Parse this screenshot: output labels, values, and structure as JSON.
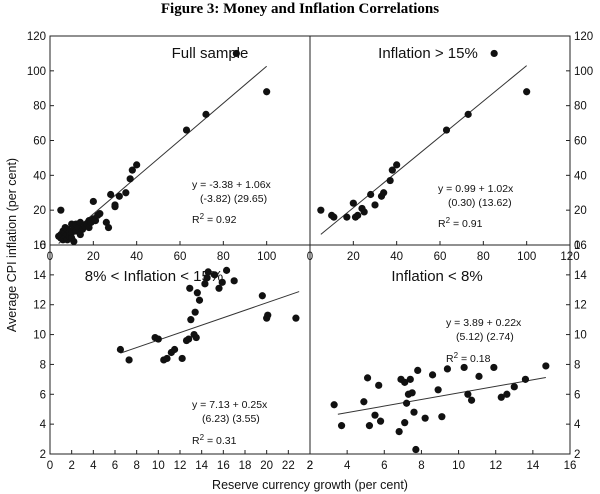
{
  "figure_title": "Figure 3: Money and Inflation Correlations",
  "axis_labels": {
    "y": "Average CPI inflation (per cent)",
    "x": "Reserve currency growth (per cent)"
  },
  "chart_data": [
    {
      "type": "scatter",
      "title": "Full sample",
      "xlim": [
        0,
        120
      ],
      "ylim": [
        0,
        120
      ],
      "x_ticks": [
        "0",
        "20",
        "40",
        "60",
        "80",
        "100"
      ],
      "y_ticks": [
        "0",
        "20",
        "40",
        "60",
        "80",
        "100",
        "120"
      ],
      "equation": [
        "y = -3.38 + 1.06x",
        "(-3.82)  (29.65)"
      ],
      "r2_label": "R",
      "r2_value": "2 = 0.92",
      "fit": {
        "intercept": -3.38,
        "slope": 1.06,
        "x_range": [
          4,
          100
        ]
      },
      "points": [
        [
          5,
          20
        ],
        [
          4,
          5
        ],
        [
          5,
          4
        ],
        [
          5,
          6
        ],
        [
          6,
          8
        ],
        [
          6,
          3
        ],
        [
          7,
          5
        ],
        [
          7,
          7
        ],
        [
          7,
          10
        ],
        [
          8,
          3
        ],
        [
          8,
          6
        ],
        [
          8,
          9
        ],
        [
          9,
          5
        ],
        [
          9,
          8
        ],
        [
          10,
          7
        ],
        [
          10,
          4
        ],
        [
          10,
          12
        ],
        [
          11,
          2
        ],
        [
          11,
          10
        ],
        [
          12,
          8
        ],
        [
          12,
          12
        ],
        [
          13,
          10
        ],
        [
          14,
          6
        ],
        [
          14,
          13
        ],
        [
          15,
          9
        ],
        [
          16,
          11
        ],
        [
          17,
          12
        ],
        [
          18,
          10
        ],
        [
          18,
          14
        ],
        [
          19,
          13
        ],
        [
          20,
          15
        ],
        [
          20,
          25
        ],
        [
          21,
          14
        ],
        [
          22,
          17
        ],
        [
          23,
          18
        ],
        [
          26,
          13
        ],
        [
          27,
          10
        ],
        [
          28,
          29
        ],
        [
          30,
          22
        ],
        [
          30,
          23
        ],
        [
          32,
          28
        ],
        [
          35,
          30
        ],
        [
          37,
          38
        ],
        [
          38,
          43
        ],
        [
          40,
          46
        ],
        [
          63,
          66
        ],
        [
          72,
          75
        ],
        [
          86,
          110
        ],
        [
          100,
          88
        ]
      ]
    },
    {
      "type": "scatter",
      "title": "Inflation > 15%",
      "xlim": [
        0,
        120
      ],
      "ylim": [
        0,
        120
      ],
      "x_ticks": [
        "0",
        "20",
        "40",
        "60",
        "80",
        "100",
        "120"
      ],
      "y_ticks": [
        "0",
        "20",
        "40",
        "60",
        "80",
        "100",
        "120"
      ],
      "equation": [
        "y = 0.99 + 1.02x",
        "(0.30)  (13.62)"
      ],
      "r2_label": "R",
      "r2_value": "2 = 0.91",
      "fit": {
        "intercept": 0.99,
        "slope": 1.02,
        "x_range": [
          5,
          100
        ]
      },
      "points": [
        [
          5,
          20
        ],
        [
          10,
          17
        ],
        [
          11,
          16
        ],
        [
          17,
          16
        ],
        [
          20,
          24
        ],
        [
          21,
          16
        ],
        [
          22,
          17
        ],
        [
          24,
          21
        ],
        [
          25,
          19
        ],
        [
          28,
          29
        ],
        [
          30,
          23
        ],
        [
          33,
          28
        ],
        [
          34,
          30
        ],
        [
          37,
          37
        ],
        [
          38,
          43
        ],
        [
          40,
          46
        ],
        [
          63,
          66
        ],
        [
          73,
          75
        ],
        [
          85,
          110
        ],
        [
          100,
          88
        ]
      ]
    },
    {
      "type": "scatter",
      "title": "8% < Inflation < 15%",
      "xlim": [
        0,
        24
      ],
      "ylim": [
        2,
        16
      ],
      "x_ticks": [
        "0",
        "2",
        "4",
        "6",
        "8",
        "10",
        "12",
        "14",
        "16",
        "18",
        "20",
        "22",
        "2"
      ],
      "y_ticks": [
        "2",
        "4",
        "6",
        "8",
        "10",
        "12",
        "14",
        "16"
      ],
      "equation": [
        "y = 7.13 + 0.25x",
        "(6.23)  (3.55)"
      ],
      "r2_label": "R",
      "r2_value": "2 = 0.31",
      "fit": {
        "intercept": 7.13,
        "slope": 0.25,
        "x_range": [
          6.5,
          23
        ]
      },
      "points": [
        [
          6.5,
          9.0
        ],
        [
          7.3,
          8.3
        ],
        [
          9.7,
          9.8
        ],
        [
          10.0,
          9.7
        ],
        [
          10.5,
          8.3
        ],
        [
          10.8,
          8.4
        ],
        [
          11.2,
          8.8
        ],
        [
          11.5,
          9.0
        ],
        [
          12.2,
          8.4
        ],
        [
          12.6,
          9.6
        ],
        [
          12.8,
          9.7
        ],
        [
          12.9,
          13.1
        ],
        [
          13.0,
          11.0
        ],
        [
          13.3,
          10.0
        ],
        [
          13.4,
          11.5
        ],
        [
          13.5,
          9.8
        ],
        [
          13.6,
          12.8
        ],
        [
          13.8,
          12.3
        ],
        [
          14.3,
          13.4
        ],
        [
          14.5,
          13.8
        ],
        [
          14.6,
          14.2
        ],
        [
          15.2,
          14.0
        ],
        [
          15.6,
          13.1
        ],
        [
          15.9,
          13.5
        ],
        [
          16.3,
          14.3
        ],
        [
          17.0,
          13.6
        ],
        [
          19.6,
          12.6
        ],
        [
          20.0,
          11.1
        ],
        [
          20.1,
          11.3
        ],
        [
          22.7,
          11.1
        ]
      ]
    },
    {
      "type": "scatter",
      "title": "Inflation < 8%",
      "xlim": [
        2,
        16
      ],
      "ylim": [
        2,
        16
      ],
      "x_ticks": [
        "2",
        "4",
        "6",
        "8",
        "10",
        "12",
        "14",
        "16"
      ],
      "y_ticks": [
        "2",
        "4",
        "6",
        "8",
        "10",
        "12",
        "14",
        "16"
      ],
      "equation": [
        "y = 3.89 + 0.22x",
        "(5.12)  (2.74)"
      ],
      "r2_label": "R",
      "r2_value": "2 = 0.18",
      "fit": {
        "intercept": 3.89,
        "slope": 0.22,
        "x_range": [
          3.5,
          14.7
        ]
      },
      "points": [
        [
          3.3,
          5.3
        ],
        [
          3.7,
          3.9
        ],
        [
          4.9,
          5.5
        ],
        [
          5.1,
          7.1
        ],
        [
          5.2,
          3.9
        ],
        [
          5.5,
          4.6
        ],
        [
          5.7,
          6.6
        ],
        [
          5.8,
          4.2
        ],
        [
          6.8,
          3.5
        ],
        [
          6.9,
          7.0
        ],
        [
          7.1,
          6.8
        ],
        [
          7.1,
          4.1
        ],
        [
          7.2,
          5.4
        ],
        [
          7.3,
          6.0
        ],
        [
          7.4,
          7.0
        ],
        [
          7.5,
          6.1
        ],
        [
          7.6,
          4.8
        ],
        [
          7.7,
          2.3
        ],
        [
          7.8,
          7.6
        ],
        [
          8.2,
          4.4
        ],
        [
          8.6,
          7.3
        ],
        [
          8.9,
          6.3
        ],
        [
          9.1,
          4.5
        ],
        [
          9.4,
          7.7
        ],
        [
          10.3,
          7.8
        ],
        [
          10.5,
          6.0
        ],
        [
          10.7,
          5.6
        ],
        [
          11.1,
          7.2
        ],
        [
          11.9,
          7.8
        ],
        [
          12.3,
          5.8
        ],
        [
          12.6,
          6.0
        ],
        [
          13.0,
          6.5
        ],
        [
          13.6,
          7.0
        ],
        [
          14.7,
          7.9
        ]
      ]
    }
  ]
}
